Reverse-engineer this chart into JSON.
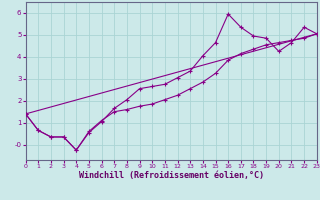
{
  "xlabel": "Windchill (Refroidissement éolien,°C)",
  "xlim": [
    0,
    23
  ],
  "ylim": [
    -0.7,
    6.5
  ],
  "xticks": [
    0,
    1,
    2,
    3,
    4,
    5,
    6,
    7,
    8,
    9,
    10,
    11,
    12,
    13,
    14,
    15,
    16,
    17,
    18,
    19,
    20,
    21,
    22,
    23
  ],
  "yticks": [
    0,
    1,
    2,
    3,
    4,
    5,
    6
  ],
  "ytick_labels": [
    "-0",
    "1",
    "2",
    "3",
    "4",
    "5",
    "6"
  ],
  "background_color": "#cce9e9",
  "grid_color": "#aad4d4",
  "line_color": "#880088",
  "line1_x": [
    0,
    1,
    2,
    3,
    4,
    5,
    6,
    7,
    8,
    9,
    10,
    11,
    12,
    13,
    14,
    15,
    16,
    17,
    18,
    19,
    20,
    21,
    22,
    23
  ],
  "line1_y": [
    1.4,
    0.65,
    0.35,
    0.35,
    -0.25,
    0.55,
    1.05,
    1.65,
    2.05,
    2.55,
    2.65,
    2.75,
    3.05,
    3.35,
    4.05,
    4.65,
    5.95,
    5.35,
    4.95,
    4.85,
    4.25,
    4.65,
    5.35,
    5.05
  ],
  "line2_x": [
    0,
    1,
    2,
    3,
    4,
    5,
    6,
    7,
    8,
    9,
    10,
    11,
    12,
    13,
    14,
    15,
    16,
    17,
    18,
    19,
    20,
    21,
    22,
    23
  ],
  "line2_y": [
    1.4,
    0.65,
    0.35,
    0.35,
    -0.25,
    0.6,
    1.1,
    1.5,
    1.6,
    1.75,
    1.85,
    2.05,
    2.25,
    2.55,
    2.85,
    3.25,
    3.85,
    4.15,
    4.35,
    4.55,
    4.65,
    4.75,
    4.85,
    5.05
  ],
  "line3_x": [
    0,
    23
  ],
  "line3_y": [
    1.4,
    5.05
  ]
}
